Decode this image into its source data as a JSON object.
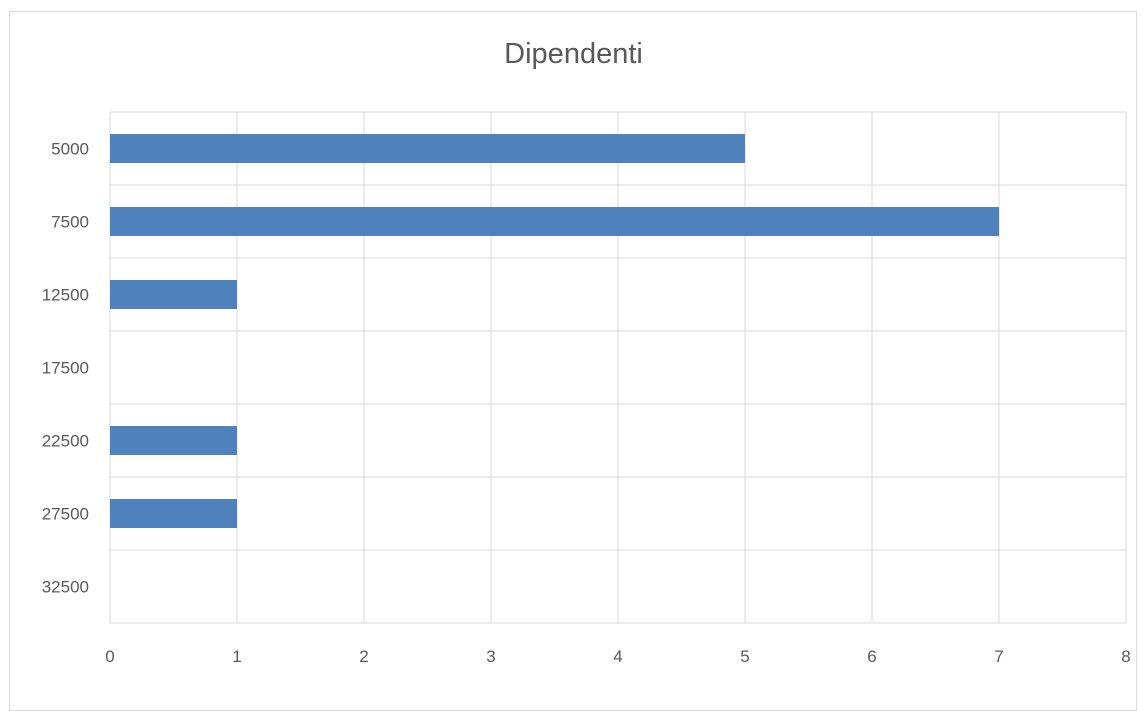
{
  "chart_data": {
    "type": "bar",
    "orientation": "horizontal",
    "title": "Dipendenti",
    "xlabel": "",
    "ylabel": "",
    "categories": [
      "5000",
      "7500",
      "12500",
      "17500",
      "22500",
      "27500",
      "32500"
    ],
    "values": [
      5,
      7,
      1,
      0,
      1,
      1,
      0
    ],
    "xlim": [
      0,
      8
    ],
    "xticks": [
      "0",
      "1",
      "2",
      "3",
      "4",
      "5",
      "6",
      "7",
      "8"
    ],
    "grid": true,
    "legend": "none",
    "colors": {
      "bar": "#4f81bd",
      "grid": "#d9d9d9",
      "text": "#595959"
    }
  }
}
